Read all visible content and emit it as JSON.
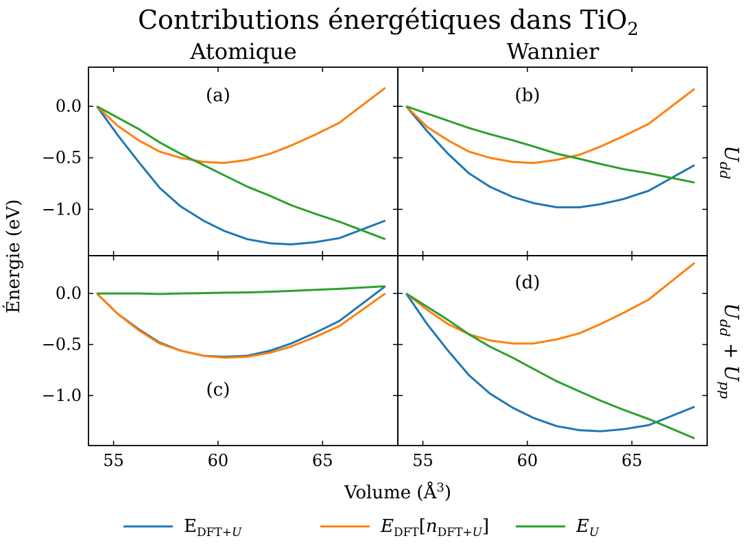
{
  "chart_data": {
    "type": "line",
    "title_text": "Contributions énergétiques dans TiO",
    "title_sub": "2",
    "column_titles": [
      "Atomique",
      "Wannier"
    ],
    "row_titles": [
      {
        "main": "U",
        "sub": "dd",
        "extra_main": "",
        "extra_sub": ""
      },
      {
        "main": "U",
        "sub": "dd",
        "extra_main": " + U",
        "extra_sub": "pp"
      }
    ],
    "xlabel_text": "Volume (Å",
    "xlabel_sup": "3",
    "xlabel_close": ")",
    "ylabel": "Énergie (eV)",
    "xlim": [
      53.8,
      68.6
    ],
    "xticks": [
      55,
      60,
      65
    ],
    "rows": [
      {
        "ylim": [
          -1.45,
          0.38
        ],
        "yticks": [
          0.0,
          -0.5,
          -1.0
        ],
        "ytick_labels": [
          "0.0",
          "−0.5",
          "−1.0"
        ]
      },
      {
        "ylim": [
          -1.49,
          0.37
        ],
        "yticks": [
          0.0,
          -0.5,
          -1.0
        ],
        "ytick_labels": [
          "0.0",
          "−0.5",
          "−1.0"
        ]
      }
    ],
    "legend_position": "bottom-center",
    "series_styles": [
      {
        "color": "#1f77b4",
        "label_main": "E",
        "label_sub": "DFT+",
        "label_sub_it": "U",
        "label_bracket": "",
        "label_n": "",
        "label_n_sub": "",
        "label_n_sub_it": "",
        "label_close": ""
      },
      {
        "color": "#ff7f0e",
        "label_main": "E",
        "label_sub": "DFT",
        "label_sub_it": "",
        "label_bracket": "[",
        "label_n": "n",
        "label_n_sub": "DFT+",
        "label_n_sub_it": "U",
        "label_close": "]"
      },
      {
        "color": "#2ca02c",
        "label_main": "E",
        "label_sub": "",
        "label_sub_it": "U",
        "label_bracket": "",
        "label_n": "",
        "label_n_sub": "",
        "label_n_sub_it": "",
        "label_close": ""
      }
    ],
    "panels": [
      {
        "label": "(a)",
        "label_pos": [
          60.0,
          0.05
        ],
        "x": [
          54.2,
          55.2,
          56.2,
          57.2,
          58.2,
          59.3,
          60.3,
          61.4,
          62.5,
          63.5,
          64.6,
          65.8,
          68.0
        ],
        "series": [
          {
            "values": [
              0.0,
              -0.28,
              -0.54,
              -0.79,
              -0.97,
              -1.11,
              -1.21,
              -1.29,
              -1.33,
              -1.34,
              -1.32,
              -1.28,
              -1.11
            ]
          },
          {
            "values": [
              0.0,
              -0.19,
              -0.33,
              -0.44,
              -0.5,
              -0.54,
              -0.55,
              -0.52,
              -0.46,
              -0.38,
              -0.28,
              -0.16,
              0.18
            ]
          },
          {
            "values": [
              0.0,
              -0.11,
              -0.22,
              -0.35,
              -0.46,
              -0.57,
              -0.67,
              -0.78,
              -0.87,
              -0.96,
              -1.04,
              -1.12,
              -1.29
            ]
          }
        ]
      },
      {
        "label": "(b)",
        "label_pos": [
          60.0,
          0.05
        ],
        "x": [
          54.2,
          55.2,
          56.2,
          57.2,
          58.2,
          59.3,
          60.3,
          61.4,
          62.5,
          63.5,
          64.6,
          65.8,
          68.0
        ],
        "series": [
          {
            "values": [
              0.0,
              -0.24,
              -0.46,
              -0.65,
              -0.78,
              -0.88,
              -0.94,
              -0.98,
              -0.98,
              -0.95,
              -0.9,
              -0.82,
              -0.57
            ]
          },
          {
            "values": [
              0.0,
              -0.2,
              -0.33,
              -0.44,
              -0.5,
              -0.54,
              -0.55,
              -0.52,
              -0.47,
              -0.39,
              -0.29,
              -0.17,
              0.17
            ]
          },
          {
            "values": [
              0.0,
              -0.07,
              -0.14,
              -0.21,
              -0.27,
              -0.33,
              -0.39,
              -0.46,
              -0.51,
              -0.56,
              -0.61,
              -0.65,
              -0.74
            ]
          }
        ]
      },
      {
        "label": "(c)",
        "label_pos": [
          60.0,
          -1.0
        ],
        "x": [
          54.2,
          55.2,
          56.2,
          57.2,
          58.2,
          59.3,
          60.3,
          61.4,
          62.5,
          63.5,
          64.6,
          65.8,
          68.0
        ],
        "series": [
          {
            "values": [
              0.0,
              -0.2,
              -0.35,
              -0.48,
              -0.56,
              -0.61,
              -0.62,
              -0.61,
              -0.56,
              -0.49,
              -0.39,
              -0.27,
              0.07
            ]
          },
          {
            "values": [
              0.0,
              -0.2,
              -0.36,
              -0.49,
              -0.56,
              -0.61,
              -0.63,
              -0.62,
              -0.58,
              -0.52,
              -0.43,
              -0.32,
              0.0
            ]
          },
          {
            "values": [
              0.0,
              0.0,
              0.0,
              -0.005,
              0.0,
              0.003,
              0.007,
              0.01,
              0.017,
              0.025,
              0.035,
              0.045,
              0.07
            ]
          }
        ]
      },
      {
        "label": "(d)",
        "label_pos": [
          60.0,
          0.05
        ],
        "x": [
          54.2,
          55.2,
          56.2,
          57.2,
          58.2,
          59.3,
          60.3,
          61.4,
          62.5,
          63.5,
          64.6,
          65.8,
          68.0
        ],
        "series": [
          {
            "values": [
              0.0,
              -0.3,
              -0.56,
              -0.8,
              -0.98,
              -1.12,
              -1.22,
              -1.3,
              -1.34,
              -1.35,
              -1.33,
              -1.29,
              -1.11
            ]
          },
          {
            "values": [
              0.0,
              -0.16,
              -0.3,
              -0.4,
              -0.46,
              -0.49,
              -0.49,
              -0.45,
              -0.39,
              -0.3,
              -0.19,
              -0.06,
              0.3
            ]
          },
          {
            "values": [
              0.0,
              -0.13,
              -0.26,
              -0.4,
              -0.52,
              -0.63,
              -0.74,
              -0.86,
              -0.96,
              -1.05,
              -1.14,
              -1.23,
              -1.42
            ]
          }
        ]
      }
    ]
  }
}
